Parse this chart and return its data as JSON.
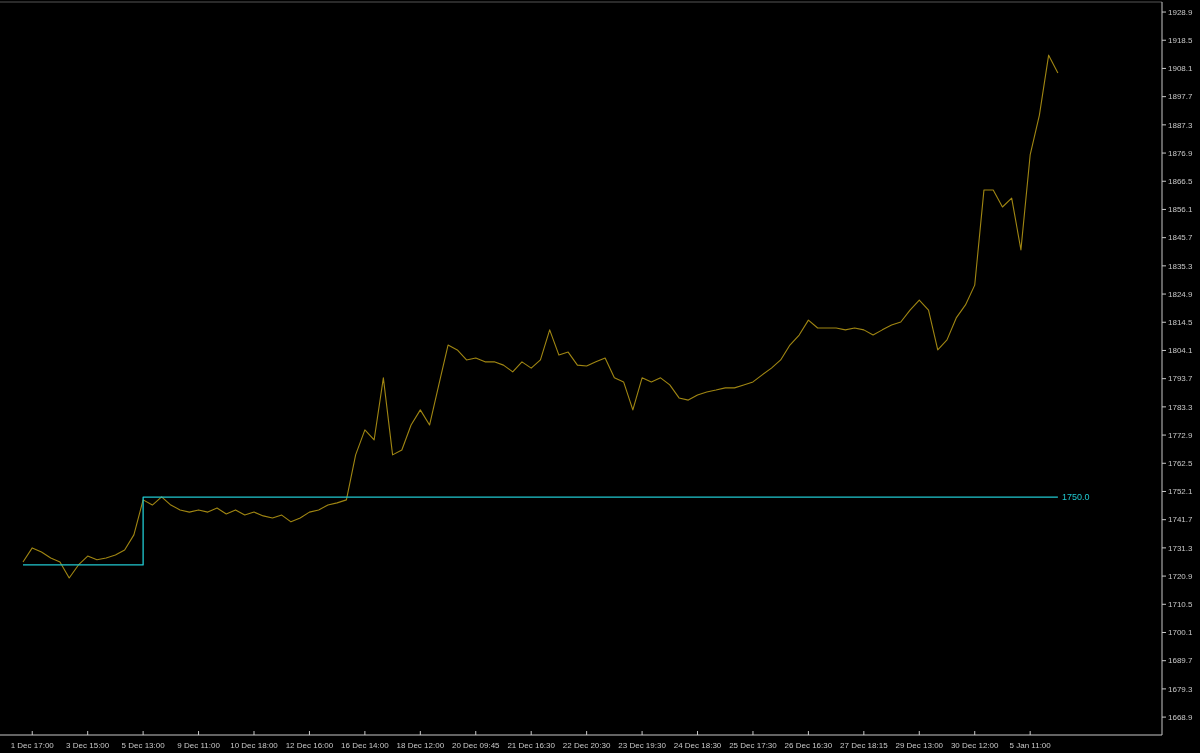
{
  "chart_data": {
    "type": "line",
    "categories": [
      null,
      "1 Dec 17:00",
      null,
      null,
      null,
      null,
      null,
      "3 Dec 15:00",
      null,
      null,
      null,
      null,
      null,
      "5 Dec 13:00",
      null,
      null,
      null,
      null,
      null,
      "9 Dec 11:00",
      null,
      null,
      null,
      null,
      null,
      "10 Dec 18:00",
      null,
      null,
      null,
      null,
      null,
      "12 Dec 16:00",
      null,
      null,
      null,
      null,
      null,
      "16 Dec 14:00",
      null,
      null,
      null,
      null,
      null,
      "18 Dec 12:00",
      null,
      null,
      null,
      null,
      null,
      "20 Dec 09:45",
      null,
      null,
      null,
      null,
      null,
      "21 Dec 16:30",
      null,
      null,
      null,
      null,
      null,
      "22 Dec 20:30",
      null,
      null,
      null,
      null,
      null,
      "23 Dec 19:30",
      null,
      null,
      null,
      null,
      null,
      "24 Dec 18:30",
      null,
      null,
      null,
      null,
      null,
      "25 Dec 17:30",
      null,
      null,
      null,
      null,
      null,
      "26 Dec 16:30",
      null,
      null,
      null,
      null,
      null,
      "27 Dec 18:15",
      null,
      null,
      null,
      null,
      null,
      "29 Dec 13:00",
      null,
      null,
      null,
      null,
      null,
      "30 Dec 12:00",
      null,
      null,
      null,
      null,
      null,
      "5 Jan 11:00",
      null,
      null,
      null
    ],
    "series": [
      {
        "color": "#a08612",
        "values": [
          1726.1,
          1731.3,
          1729.8,
          1727.6,
          1726.1,
          1720.2,
          1725.0,
          1728.3,
          1726.9,
          1727.6,
          1728.7,
          1730.5,
          1736.1,
          1749.0,
          1747.1,
          1750.1,
          1747.1,
          1745.3,
          1744.5,
          1745.3,
          1744.5,
          1746.0,
          1743.8,
          1745.3,
          1743.4,
          1744.5,
          1743.1,
          1742.3,
          1743.4,
          1740.9,
          1742.3,
          1744.5,
          1745.3,
          1747.1,
          1747.9,
          1749.0,
          1765.6,
          1774.8,
          1771.1,
          1794.0,
          1765.6,
          1767.4,
          1776.6,
          1782.2,
          1776.6,
          1791.4,
          1806.1,
          1804.3,
          1800.6,
          1801.3,
          1799.9,
          1799.9,
          1798.7,
          1796.2,
          1799.9,
          1797.6,
          1800.6,
          1811.7,
          1802.4,
          1803.5,
          1798.7,
          1798.4,
          1799.9,
          1801.3,
          1794.0,
          1792.5,
          1782.2,
          1794.0,
          1792.5,
          1794.0,
          1791.4,
          1786.6,
          1785.8,
          1787.7,
          1788.8,
          1789.5,
          1790.3,
          1790.3,
          1791.4,
          1792.5,
          1795.1,
          1797.6,
          1800.6,
          1806.1,
          1809.8,
          1815.3,
          1812.4,
          1812.4,
          1812.4,
          1811.7,
          1812.4,
          1811.7,
          1809.8,
          1811.7,
          1813.5,
          1814.6,
          1819.0,
          1822.7,
          1819.0,
          1804.3,
          1808.0,
          1816.1,
          1820.9,
          1828.2,
          1863.3,
          1863.3,
          1857.0,
          1860.3,
          1841.2,
          1876.2,
          1890.9,
          1913.0,
          1906.4
        ]
      },
      {
        "type": "step",
        "color": "#20c8d0",
        "values": [
          1725.0,
          1725.0,
          1725.0,
          1725.0,
          1725.0,
          1725.0,
          1725.0,
          1725.0,
          1725.0,
          1725.0,
          1725.0,
          1725.0,
          1725.0,
          1750.0,
          1750.0,
          1750.0,
          1750.0,
          1750.0,
          1750.0,
          1750.0,
          1750.0,
          1750.0,
          1750.0,
          1750.0,
          1750.0,
          1750.0,
          1750.0,
          1750.0,
          1750.0,
          1750.0,
          1750.0,
          1750.0,
          1750.0,
          1750.0,
          1750.0,
          1750.0,
          1750.0,
          1750.0,
          1750.0,
          1750.0,
          1750.0,
          1750.0,
          1750.0,
          1750.0,
          1750.0,
          1750.0,
          1750.0,
          1750.0,
          1750.0,
          1750.0,
          1750.0,
          1750.0,
          1750.0,
          1750.0,
          1750.0,
          1750.0,
          1750.0,
          1750.0,
          1750.0,
          1750.0,
          1750.0,
          1750.0,
          1750.0,
          1750.0,
          1750.0,
          1750.0,
          1750.0,
          1750.0,
          1750.0,
          1750.0,
          1750.0,
          1750.0,
          1750.0,
          1750.0,
          1750.0,
          1750.0,
          1750.0,
          1750.0,
          1750.0,
          1750.0,
          1750.0,
          1750.0,
          1750.0,
          1750.0,
          1750.0,
          1750.0,
          1750.0,
          1750.0,
          1750.0,
          1750.0,
          1750.0,
          1750.0,
          1750.0,
          1750.0,
          1750.0,
          1750.0,
          1750.0,
          1750.0,
          1750.0,
          1750.0,
          1750.0,
          1750.0,
          1750.0,
          1750.0,
          1750.0,
          1750.0,
          1750.0,
          1750.0,
          1750.0,
          1750.0,
          1750.0,
          1750.0,
          1750.0
        ]
      }
    ],
    "annotations": [
      "1750.0"
    ],
    "ylim": [
      1662.3,
      1932.6
    ],
    "yticks": [
      1668.9,
      1679.3,
      1689.7,
      1700.1,
      1710.5,
      1720.9,
      1731.3,
      1741.7,
      1752.1,
      1762.5,
      1772.9,
      1783.3,
      1793.7,
      1804.1,
      1814.5,
      1824.9,
      1835.3,
      1845.7,
      1856.1,
      1866.5,
      1876.9,
      1887.3,
      1897.7,
      1908.1,
      1918.5,
      1928.9
    ]
  }
}
